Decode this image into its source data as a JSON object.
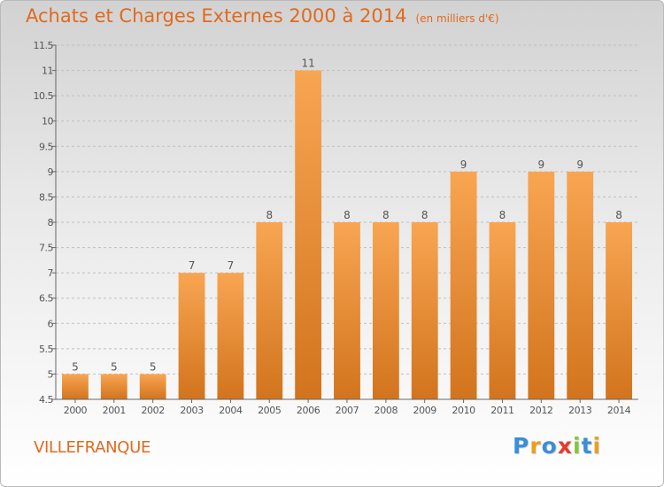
{
  "header": {
    "title": "Achats et Charges Externes 2000 à 2014",
    "subtitle": "(en milliers d'€)"
  },
  "place_name": "VILLEFRANQUE",
  "logo": {
    "text": "Proxiti",
    "letters": [
      {
        "char": "P",
        "color": "#3a8fd6"
      },
      {
        "char": "r",
        "color": "#e8a020"
      },
      {
        "char": "o",
        "color": "#3a8fd6"
      },
      {
        "char": "x",
        "color": "#e63a2e"
      },
      {
        "char": "i",
        "color": "#8ac43f"
      },
      {
        "char": "t",
        "color": "#3a8fd6"
      },
      {
        "char": "i",
        "color": "#e8a020"
      }
    ]
  },
  "colors": {
    "accent": "#e06a1e",
    "bar_top": "#f8a552",
    "bar_bottom": "#d2741d",
    "grid": "#bfbfbf",
    "axis_text": "#555555"
  },
  "chart_data": {
    "type": "bar",
    "categories": [
      "2000",
      "2001",
      "2002",
      "2003",
      "2004",
      "2005",
      "2006",
      "2007",
      "2008",
      "2009",
      "2010",
      "2011",
      "2012",
      "2013",
      "2014"
    ],
    "values": [
      5,
      5,
      5,
      7,
      7,
      8,
      11,
      8,
      8,
      8,
      9,
      8,
      9,
      9,
      8
    ],
    "ylim": [
      4.5,
      11.5
    ],
    "yticks": [
      "4.5",
      "5",
      "5.5",
      "6",
      "6.5",
      "7",
      "7.5",
      "8",
      "8.5",
      "9",
      "9.5",
      "10",
      "10.5",
      "11",
      "11.5"
    ],
    "grid": "horizontal, dashed",
    "legend": "none"
  }
}
